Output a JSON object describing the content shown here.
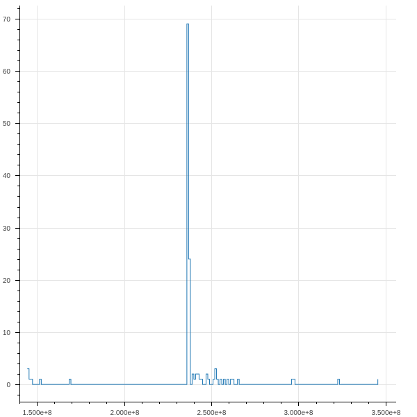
{
  "chart_data": {
    "type": "line",
    "style": "step",
    "title": "",
    "xlabel": "",
    "ylabel": "",
    "grid": true,
    "line_color": "#1f77b4",
    "xlim": [
      140000000,
      356000000
    ],
    "ylim": [
      -3.3,
      72.5
    ],
    "xticks": [
      {
        "value": 150000000,
        "label": "1.500e+8"
      },
      {
        "value": 200000000,
        "label": "2.000e+8"
      },
      {
        "value": 250000000,
        "label": "2.500e+8"
      },
      {
        "value": 300000000,
        "label": "3.000e+8"
      },
      {
        "value": 350000000,
        "label": "3.500e+8"
      }
    ],
    "yticks": [
      {
        "value": 0,
        "label": "0"
      },
      {
        "value": 10,
        "label": "10"
      },
      {
        "value": 20,
        "label": "20"
      },
      {
        "value": 30,
        "label": "30"
      },
      {
        "value": 40,
        "label": "40"
      },
      {
        "value": 50,
        "label": "50"
      },
      {
        "value": 60,
        "label": "60"
      },
      {
        "value": 70,
        "label": "70"
      }
    ],
    "series": [
      {
        "x": [
          144500000,
          145500000,
          147500000,
          151500000,
          152500000,
          168500000,
          169500000,
          236000000,
          237000000,
          238000000,
          239000000,
          240000000,
          241000000,
          243000000,
          245000000,
          247000000,
          248000000,
          249000000,
          251000000,
          252000000,
          253000000,
          254000000,
          255000000,
          256000000,
          257000000,
          258000000,
          259000000,
          260000000,
          261000000,
          263000000,
          265000000,
          266000000,
          296000000,
          298000000,
          322500000,
          323500000,
          345500000
        ],
        "y": [
          3,
          1,
          0,
          1,
          0,
          1,
          0,
          69,
          24,
          0,
          2,
          1,
          2,
          1,
          0,
          2,
          1,
          0,
          1,
          3,
          1,
          0,
          1,
          0,
          1,
          0,
          1,
          0,
          1,
          0,
          1,
          0,
          1,
          0,
          1,
          0,
          1
        ]
      }
    ]
  }
}
